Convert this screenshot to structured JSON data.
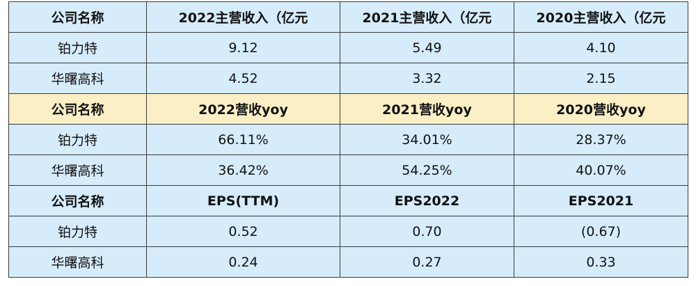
{
  "sections": [
    {
      "headers": [
        "公司名称",
        "2022主营收入（亿元",
        "2021主营收入（亿元",
        "2020主营收入（亿元"
      ],
      "rows": [
        [
          "铂力特",
          "9.12",
          "5.49",
          "4.10"
        ],
        [
          "华曙高科",
          "4.52",
          "3.32",
          "2.15"
        ]
      ]
    },
    {
      "headers": [
        "公司名称",
        "2022营收yoy",
        "2021营收yoy",
        "2020营收yoy"
      ],
      "rows": [
        [
          "铂力特",
          "66.11%",
          "34.01%",
          "28.37%"
        ],
        [
          "华曙高科",
          "36.42%",
          "54.25%",
          "40.07%"
        ]
      ]
    },
    {
      "headers": [
        "公司名称",
        "EPS(TTM)",
        "EPS2022",
        "EPS2021"
      ],
      "rows": [
        [
          "铂力特",
          "0.52",
          "0.70",
          "(0.67)"
        ],
        [
          "华曙高科",
          "0.24",
          "0.27",
          "0.33"
        ]
      ]
    }
  ],
  "colors": {
    "blue_background": "#d6ecfb",
    "tan_background": "#fbefc6",
    "border": "#3a3a3a"
  }
}
